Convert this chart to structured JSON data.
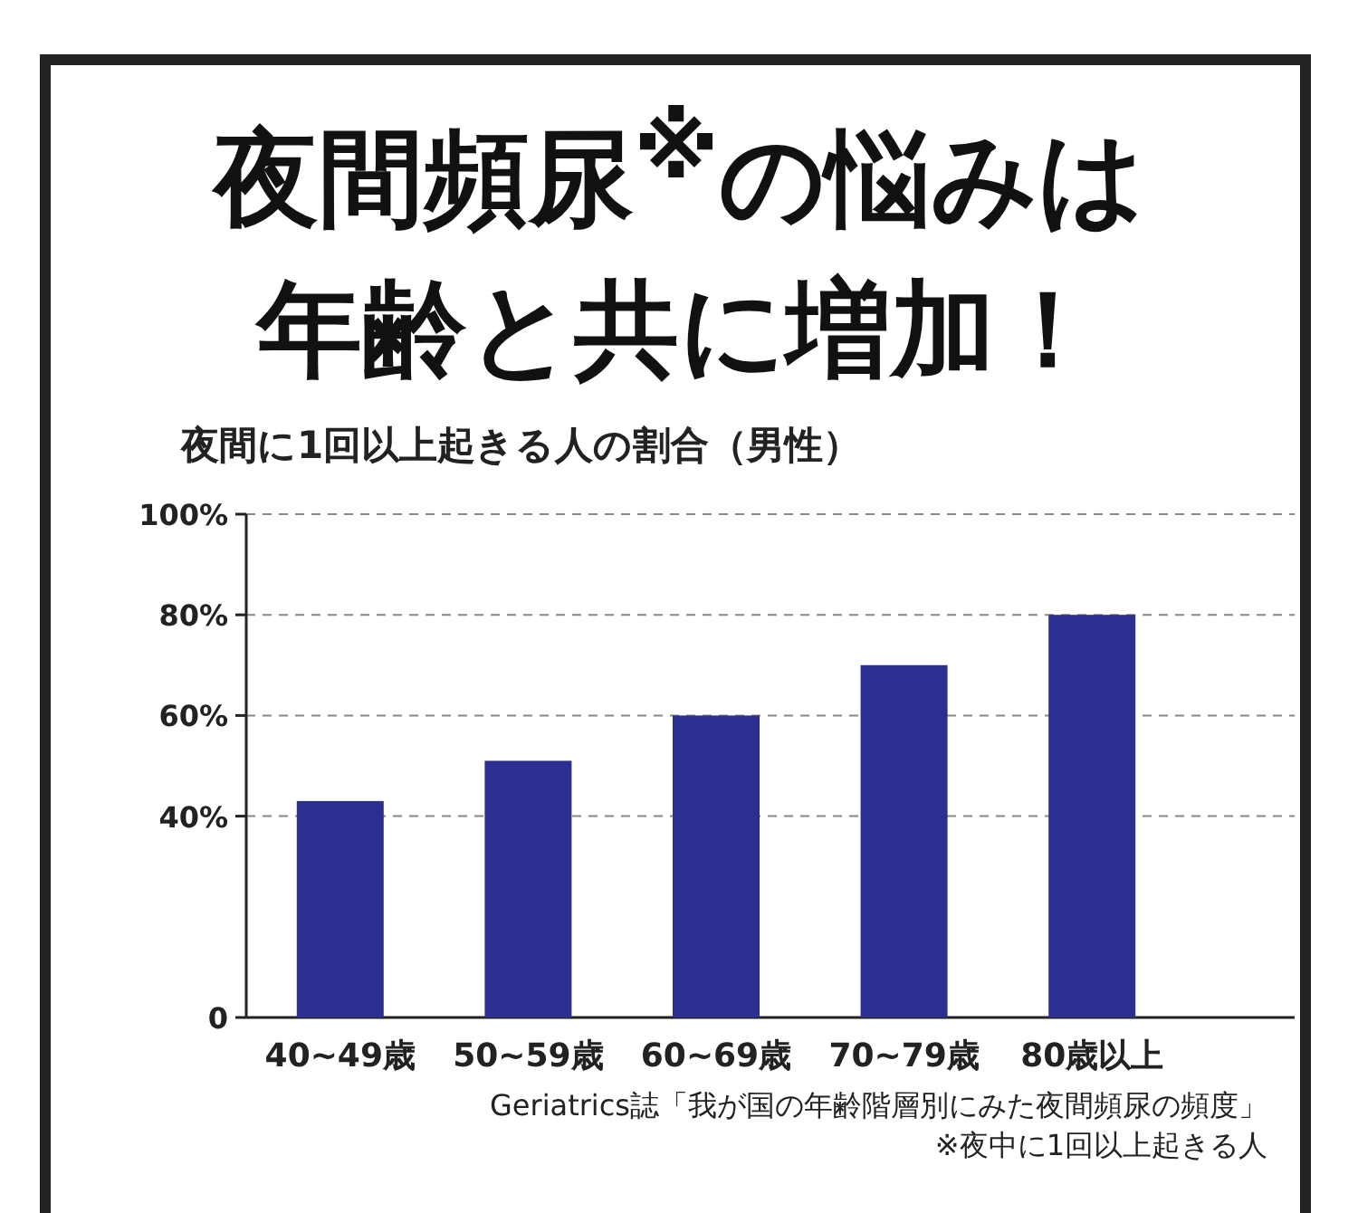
{
  "chart_data": {
    "type": "bar",
    "title": "夜間頻尿$^{※}$の悩みは年齢と共に増加！",
    "subtitle": "夜間に1回以上起きる人の割合（男性）",
    "categories": [
      "40~49歳",
      "50~59歳",
      "60~69歳",
      "70~79歳",
      "80歳以上"
    ],
    "values": [
      43,
      51,
      60,
      70,
      80
    ],
    "color": "#2b2f8f",
    "ylim": [
      0,
      100
    ],
    "yticks": [
      0,
      {
        "value": 40,
        "label": "40%"
      },
      {
        "value": 60,
        "label": "60%"
      },
      {
        "value": 80,
        "label": "80%"
      },
      {
        "value": 100,
        "label": "100%"
      }
    ],
    "grid": "y",
    "annotations": [
      "Geriatrics誌「我が国の年齢階層別にみた夜間頻尿の頻度」",
      "※夜中に1回以上起きる人"
    ]
  }
}
